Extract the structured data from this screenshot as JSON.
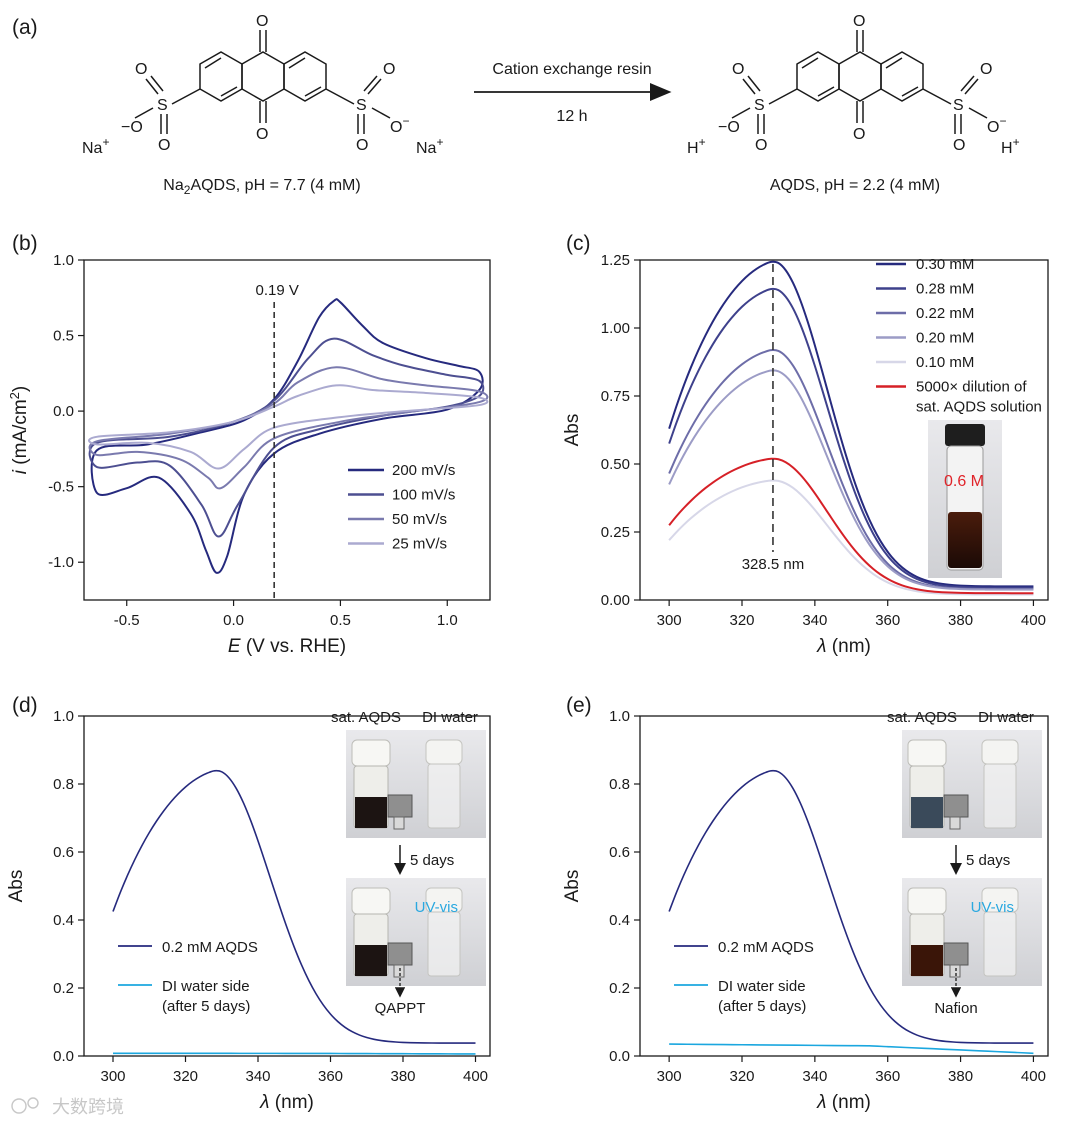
{
  "panel_labels": {
    "a": "(a)",
    "b": "(b)",
    "c": "(c)",
    "d": "(d)",
    "e": "(e)"
  },
  "scheme": {
    "arrow_top": "Cation exchange resin",
    "arrow_bottom": "12 h",
    "left_caption_pre": "Na",
    "left_caption_sub": "2",
    "left_caption_post": "AQDS, pH = 7.7 (4 mM)",
    "right_caption": "AQDS, pH = 2.2 (4 mM)",
    "atom_O": "O",
    "atom_S": "S",
    "left_counterion": "Na",
    "right_counterion": "H",
    "plus": "+",
    "minus": "−"
  },
  "colors": {
    "s200": "#262a7e",
    "s100": "#4d4f91",
    "s50": "#7a7aae",
    "s25": "#abaad0",
    "c030": "#262a7e",
    "c028": "#3e418c",
    "c022": "#6d6da8",
    "c020": "#9c9cc6",
    "c010": "#d7d7e8",
    "dilution": "#d62027",
    "red_text": "#e0242a",
    "cyan": "#1ba7df",
    "uv_text": "#2aa8e0"
  },
  "chart_data": [
    {
      "id": "b",
      "type": "line",
      "xlabel": "E (V vs. RHE)",
      "ylabel": "i (mA/cm2)",
      "xlim": [
        -0.7,
        1.2
      ],
      "ylim": [
        -1.25,
        1.0
      ],
      "xticks": [
        "-0.5",
        "0.0",
        "0.5",
        "1.0"
      ],
      "yticks": [
        "-1.0",
        "-0.5",
        "0.0",
        "0.5",
        "1.0"
      ],
      "annotation": "0.19 V",
      "vline_x": 0.19,
      "series": [
        {
          "name": "200 mV/s",
          "color_key": "s200",
          "points": [
            [
              -0.64,
              -0.54
            ],
            [
              -0.5,
              -0.51
            ],
            [
              -0.35,
              -0.44
            ],
            [
              -0.2,
              -0.68
            ],
            [
              -0.13,
              -0.92
            ],
            [
              -0.08,
              -1.07
            ],
            [
              -0.03,
              -0.96
            ],
            [
              0.05,
              -0.55
            ],
            [
              0.19,
              -0.28
            ],
            [
              0.4,
              -0.15
            ],
            [
              0.7,
              -0.05
            ],
            [
              1.0,
              0.01
            ],
            [
              1.15,
              0.14
            ],
            [
              1.15,
              0.26
            ],
            [
              1.05,
              0.3
            ],
            [
              0.9,
              0.35
            ],
            [
              0.7,
              0.45
            ],
            [
              0.6,
              0.57
            ],
            [
              0.5,
              0.72
            ],
            [
              0.47,
              0.73
            ],
            [
              0.4,
              0.62
            ],
            [
              0.3,
              0.33
            ],
            [
              0.19,
              0.08
            ],
            [
              0.05,
              -0.06
            ],
            [
              -0.15,
              -0.14
            ],
            [
              -0.4,
              -0.22
            ],
            [
              -0.64,
              -0.26
            ]
          ]
        },
        {
          "name": "100 mV/s",
          "color_key": "s100",
          "points": [
            [
              -0.64,
              -0.37
            ],
            [
              -0.45,
              -0.34
            ],
            [
              -0.3,
              -0.36
            ],
            [
              -0.15,
              -0.62
            ],
            [
              -0.07,
              -0.83
            ],
            [
              0.02,
              -0.62
            ],
            [
              0.19,
              -0.24
            ],
            [
              0.4,
              -0.12
            ],
            [
              0.7,
              -0.03
            ],
            [
              1.0,
              0.03
            ],
            [
              1.15,
              0.1
            ],
            [
              1.15,
              0.2
            ],
            [
              1.0,
              0.24
            ],
            [
              0.8,
              0.3
            ],
            [
              0.65,
              0.37
            ],
            [
              0.47,
              0.48
            ],
            [
              0.35,
              0.35
            ],
            [
              0.19,
              0.07
            ],
            [
              0.0,
              -0.07
            ],
            [
              -0.3,
              -0.17
            ],
            [
              -0.64,
              -0.21
            ]
          ]
        },
        {
          "name": "50 mV/s",
          "color_key": "s50",
          "points": [
            [
              -0.64,
              -0.29
            ],
            [
              -0.45,
              -0.27
            ],
            [
              -0.25,
              -0.32
            ],
            [
              -0.12,
              -0.44
            ],
            [
              -0.06,
              -0.51
            ],
            [
              0.05,
              -0.37
            ],
            [
              0.19,
              -0.18
            ],
            [
              0.5,
              -0.07
            ],
            [
              0.8,
              -0.01
            ],
            [
              1.15,
              0.06
            ],
            [
              1.15,
              0.13
            ],
            [
              0.9,
              0.17
            ],
            [
              0.7,
              0.21
            ],
            [
              0.48,
              0.29
            ],
            [
              0.3,
              0.19
            ],
            [
              0.19,
              0.05
            ],
            [
              0.0,
              -0.07
            ],
            [
              -0.3,
              -0.15
            ],
            [
              -0.64,
              -0.2
            ]
          ]
        },
        {
          "name": "25 mV/s",
          "color_key": "s25",
          "points": [
            [
              -0.64,
              -0.22
            ],
            [
              -0.4,
              -0.21
            ],
            [
              -0.2,
              -0.27
            ],
            [
              -0.07,
              -0.38
            ],
            [
              0.05,
              -0.25
            ],
            [
              0.19,
              -0.11
            ],
            [
              0.5,
              -0.04
            ],
            [
              0.8,
              0.0
            ],
            [
              1.15,
              0.04
            ],
            [
              1.15,
              0.09
            ],
            [
              0.9,
              0.12
            ],
            [
              0.65,
              0.14
            ],
            [
              0.48,
              0.17
            ],
            [
              0.3,
              0.1
            ],
            [
              0.19,
              0.03
            ],
            [
              0.0,
              -0.07
            ],
            [
              -0.3,
              -0.14
            ],
            [
              -0.64,
              -0.17
            ]
          ]
        }
      ]
    },
    {
      "id": "c",
      "type": "line",
      "xlabel": "λ (nm)",
      "ylabel": "Abs",
      "xlim": [
        292,
        404
      ],
      "ylim": [
        0.0,
        1.25
      ],
      "xticks": [
        "300",
        "320",
        "340",
        "360",
        "380",
        "400"
      ],
      "yticks": [
        "0.00",
        "0.25",
        "0.50",
        "0.75",
        "1.00",
        "1.25"
      ],
      "annotation": "328.5 nm",
      "vline_x": 328.5,
      "inset_text": "0.6 M",
      "series": [
        {
          "name": "0.30 mM",
          "color_key": "c030",
          "peak": 1.245,
          "start": 0.63,
          "end": 0.05
        },
        {
          "name": "0.28 mM",
          "color_key": "c028",
          "peak": 1.145,
          "start": 0.575,
          "end": 0.045
        },
        {
          "name": "0.22 mM",
          "color_key": "c022",
          "peak": 0.92,
          "start": 0.465,
          "end": 0.04
        },
        {
          "name": "0.20 mM",
          "color_key": "c020",
          "peak": 0.845,
          "start": 0.425,
          "end": 0.038
        },
        {
          "name": "0.10 mM",
          "color_key": "c010",
          "peak": 0.44,
          "start": 0.22,
          "end": 0.02
        },
        {
          "name_line1": "5000× dilution of",
          "name_line2": "sat. AQDS solution",
          "color_key": "dilution",
          "peak": 0.52,
          "start": 0.275,
          "end": 0.025
        }
      ]
    },
    {
      "id": "d",
      "type": "line",
      "xlabel": "λ (nm)",
      "ylabel": "Abs",
      "xlim": [
        292,
        404
      ],
      "ylim": [
        0.0,
        1.0
      ],
      "xticks": [
        "300",
        "320",
        "340",
        "360",
        "380",
        "400"
      ],
      "yticks": [
        "0.0",
        "0.2",
        "0.4",
        "0.6",
        "0.8",
        "1.0"
      ],
      "series": [
        {
          "name": "0.2 mM AQDS",
          "color_key": "s200",
          "peak": 0.84,
          "start": 0.425,
          "end": 0.038
        },
        {
          "name_line1": "DI water side",
          "name_line2": "(after 5 days)",
          "color_key": "cyan",
          "flat_start": 0.008,
          "flat_end": 0.006
        }
      ],
      "inset": {
        "label_left": "sat. AQDS",
        "label_right": "DI water",
        "arrow_text": "5 days",
        "uv": "UV-vis",
        "membrane": "QAPPT"
      }
    },
    {
      "id": "e",
      "type": "line",
      "xlabel": "λ (nm)",
      "ylabel": "Abs",
      "xlim": [
        292,
        404
      ],
      "ylim": [
        0.0,
        1.0
      ],
      "xticks": [
        "300",
        "320",
        "340",
        "360",
        "380",
        "400"
      ],
      "yticks": [
        "0.0",
        "0.2",
        "0.4",
        "0.6",
        "0.8",
        "1.0"
      ],
      "series": [
        {
          "name": "0.2 mM AQDS",
          "color_key": "s200",
          "peak": 0.84,
          "start": 0.425,
          "end": 0.038
        },
        {
          "name_line1": "DI water side",
          "name_line2": "(after 5 days)",
          "color_key": "cyan",
          "flat_start": 0.035,
          "flat_end": 0.008
        }
      ],
      "inset": {
        "label_left": "sat. AQDS",
        "label_right": "DI water",
        "arrow_text": "5 days",
        "uv": "UV-vis",
        "membrane": "Nafion"
      }
    }
  ],
  "watermark": "大数跨境"
}
